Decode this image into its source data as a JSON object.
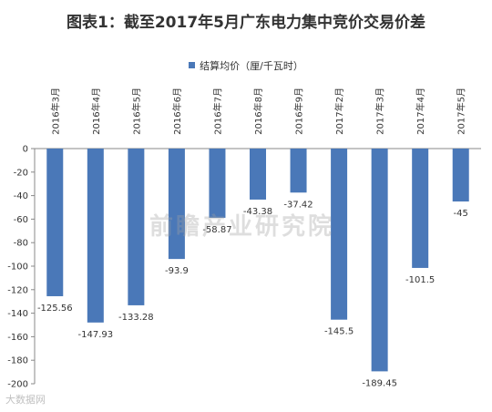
{
  "title": "图表1：截至2017年5月广东电力集中竞价交易价差",
  "watermark": "前瞻产业研究院",
  "corner_watermark": "大数据网",
  "colors": {
    "bar": "#4a78b8",
    "axis": "#888888",
    "text": "#333333"
  },
  "chart_data": {
    "type": "bar",
    "categories": [
      "2016年3月",
      "2016年4月",
      "2016年5月",
      "2016年6月",
      "2016年7月",
      "2016年8月",
      "2016年9月",
      "2017年2月",
      "2017年3月",
      "2017年4月",
      "2017年5月"
    ],
    "series": [
      {
        "name": "结算均价（厘/千瓦时）",
        "values": [
          -125.56,
          -147.93,
          -133.28,
          -93.9,
          -58.87,
          -43.38,
          -37.42,
          -145.5,
          -189.45,
          -101.5,
          -45
        ],
        "labels": [
          "-125.56",
          "-147.93",
          "-133.28",
          "-93.9",
          "-58.87",
          "-43.38",
          "-37.42",
          "-145.5",
          "-189.45",
          "-101.5",
          "-45"
        ]
      }
    ],
    "yticks": [
      0,
      -20,
      -40,
      -60,
      -80,
      -100,
      -120,
      -140,
      -160,
      -180,
      -200
    ],
    "ylim": [
      -200,
      0
    ],
    "legend_position": "top",
    "grid": false
  }
}
